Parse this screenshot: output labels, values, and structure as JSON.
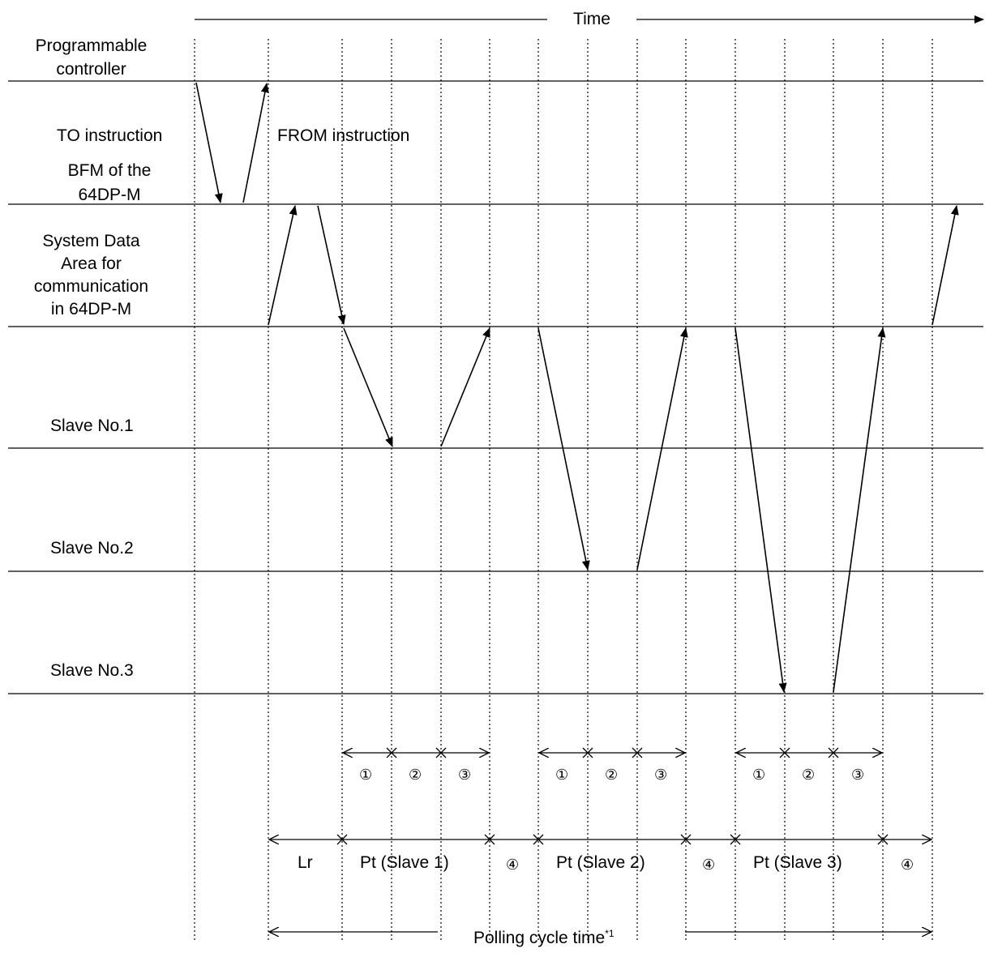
{
  "labels": {
    "time": "Time",
    "programmable_controller": [
      "Programmable",
      "controller"
    ],
    "to_instruction": "TO instruction",
    "from_instruction": "FROM instruction",
    "bfm": [
      "BFM of the",
      "64DP-M"
    ],
    "system_data_area": [
      "System Data",
      "Area for",
      "communication",
      "in 64DP-M"
    ],
    "slave1": "Slave No.1",
    "slave2": "Slave No.2",
    "slave3": "Slave No.3",
    "step1": "①",
    "step2": "②",
    "step3": "③",
    "step4": "④",
    "lr": "Lr",
    "pt_slave1": "Pt (Slave 1)",
    "pt_slave2": "Pt (Slave 2)",
    "pt_slave3": "Pt (Slave 3)",
    "polling_cycle_time": "Polling cycle time",
    "polling_footnote": "*1"
  }
}
